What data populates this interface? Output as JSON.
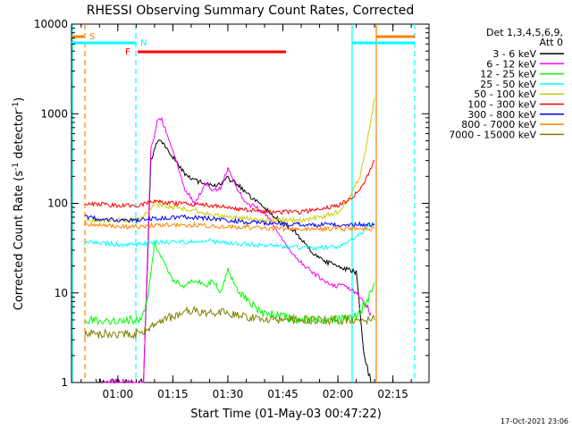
{
  "chart_data": {
    "type": "line",
    "title": "RHESSI Observing Summary Count Rates, Corrected",
    "xlabel": "Start Time (01-May-03 00:47:22)",
    "ylabel": "Corrected Count Rate (s",
    "ylabel_sup": "-1",
    "ylabel_tail": " detector",
    "ylabel_end": ")",
    "yscale": "log",
    "ylim": [
      1,
      10000
    ],
    "xlim": [
      "00:47:22",
      "02:24:50"
    ],
    "x_ticks": [
      "01:00",
      "01:15",
      "01:30",
      "01:45",
      "02:00",
      "02:15"
    ],
    "y_ticks": [
      "1",
      "10",
      "100",
      "1000",
      "10000"
    ],
    "legend_position": "right",
    "legend_header": [
      "Det 1,3,4,5,6,9,",
      "Att 0"
    ],
    "footer": "17-Oct-2021 23:06",
    "markers": [
      {
        "label": "S",
        "color": "#ff7f00"
      },
      {
        "label": "N",
        "color": "#00ffff"
      },
      {
        "label": "F",
        "color": "#ff0000"
      }
    ],
    "series": [
      {
        "name": "3 - 6 keV",
        "color": "#000000",
        "points": [
          [
            "00:54",
            1
          ],
          [
            "01:07",
            1
          ],
          [
            "01:09",
            300
          ],
          [
            "01:11",
            520
          ],
          [
            "01:13",
            430
          ],
          [
            "01:15",
            330
          ],
          [
            "01:18",
            220
          ],
          [
            "01:21",
            180
          ],
          [
            "01:24",
            165
          ],
          [
            "01:27",
            160
          ],
          [
            "01:30",
            190
          ],
          [
            "01:33",
            160
          ],
          [
            "01:36",
            120
          ],
          [
            "01:39",
            95
          ],
          [
            "01:42",
            75
          ],
          [
            "01:45",
            60
          ],
          [
            "01:48",
            50
          ],
          [
            "01:51",
            35
          ],
          [
            "01:54",
            26
          ],
          [
            "01:57",
            22
          ],
          [
            "02:00",
            20
          ],
          [
            "02:03",
            18
          ],
          [
            "02:05",
            17
          ],
          [
            "02:06",
            6
          ],
          [
            "02:07",
            2
          ],
          [
            "02:08",
            1.5
          ],
          [
            "02:09",
            1
          ]
        ]
      },
      {
        "name": "6 - 12 keV",
        "color": "#ff00ff",
        "points": [
          [
            "00:56",
            1
          ],
          [
            "01:07",
            1
          ],
          [
            "01:09",
            400
          ],
          [
            "01:11",
            900
          ],
          [
            "01:12",
            850
          ],
          [
            "01:15",
            400
          ],
          [
            "01:18",
            150
          ],
          [
            "01:21",
            100
          ],
          [
            "01:24",
            170
          ],
          [
            "01:26",
            140
          ],
          [
            "01:28",
            150
          ],
          [
            "01:30",
            240
          ],
          [
            "01:32",
            160
          ],
          [
            "01:35",
            100
          ],
          [
            "01:38",
            90
          ],
          [
            "01:41",
            70
          ],
          [
            "01:44",
            45
          ],
          [
            "01:47",
            30
          ],
          [
            "01:50",
            22
          ],
          [
            "01:53",
            17
          ],
          [
            "01:56",
            14
          ],
          [
            "01:59",
            12
          ],
          [
            "02:02",
            12
          ],
          [
            "02:05",
            10
          ],
          [
            "02:07",
            8
          ],
          [
            "02:09",
            6
          ]
        ]
      },
      {
        "name": "12 - 25 keV",
        "color": "#00ff00",
        "points": [
          [
            "00:51",
            5
          ],
          [
            "01:06",
            5
          ],
          [
            "01:08",
            8
          ],
          [
            "01:10",
            35
          ],
          [
            "01:12",
            25
          ],
          [
            "01:15",
            14
          ],
          [
            "01:18",
            12
          ],
          [
            "01:21",
            14
          ],
          [
            "01:24",
            12
          ],
          [
            "01:26",
            14
          ],
          [
            "01:28",
            10
          ],
          [
            "01:30",
            18
          ],
          [
            "01:33",
            10
          ],
          [
            "01:36",
            8
          ],
          [
            "01:39",
            6
          ],
          [
            "01:42",
            6
          ],
          [
            "01:45",
            5.5
          ],
          [
            "01:50",
            5
          ],
          [
            "01:55",
            5
          ],
          [
            "02:00",
            5
          ],
          [
            "02:05",
            5.5
          ],
          [
            "02:08",
            8
          ],
          [
            "02:10",
            13
          ]
        ]
      },
      {
        "name": "25 - 50 keV",
        "color": "#00ffff",
        "points": [
          [
            "00:51",
            37
          ],
          [
            "01:00",
            35
          ],
          [
            "01:06",
            35
          ],
          [
            "01:10",
            37
          ],
          [
            "01:15",
            37
          ],
          [
            "01:20",
            37
          ],
          [
            "01:25",
            38
          ],
          [
            "01:30",
            36
          ],
          [
            "01:35",
            35
          ],
          [
            "01:40",
            34
          ],
          [
            "01:45",
            33
          ],
          [
            "01:50",
            32
          ],
          [
            "01:55",
            32
          ],
          [
            "02:00",
            33
          ],
          [
            "02:03",
            38
          ],
          [
            "02:06",
            45
          ],
          [
            "02:08",
            55
          ],
          [
            "02:10",
            60
          ]
        ]
      },
      {
        "name": "50 - 100 keV",
        "color": "#cccc00",
        "points": [
          [
            "00:51",
            65
          ],
          [
            "01:00",
            65
          ],
          [
            "01:06",
            65
          ],
          [
            "01:10",
            100
          ],
          [
            "01:15",
            90
          ],
          [
            "01:20",
            85
          ],
          [
            "01:25",
            75
          ],
          [
            "01:30",
            70
          ],
          [
            "01:35",
            68
          ],
          [
            "01:40",
            65
          ],
          [
            "01:45",
            65
          ],
          [
            "01:50",
            65
          ],
          [
            "01:55",
            70
          ],
          [
            "02:00",
            80
          ],
          [
            "02:03",
            110
          ],
          [
            "02:06",
            200
          ],
          [
            "02:08",
            500
          ],
          [
            "02:10",
            1500
          ]
        ]
      },
      {
        "name": "100 - 300 keV",
        "color": "#ff0000",
        "points": [
          [
            "00:51",
            100
          ],
          [
            "01:00",
            95
          ],
          [
            "01:06",
            95
          ],
          [
            "01:10",
            105
          ],
          [
            "01:15",
            100
          ],
          [
            "01:20",
            98
          ],
          [
            "01:25",
            95
          ],
          [
            "01:30",
            90
          ],
          [
            "01:35",
            85
          ],
          [
            "01:40",
            80
          ],
          [
            "01:45",
            80
          ],
          [
            "01:50",
            80
          ],
          [
            "01:55",
            85
          ],
          [
            "02:00",
            95
          ],
          [
            "02:03",
            110
          ],
          [
            "02:06",
            140
          ],
          [
            "02:08",
            200
          ],
          [
            "02:10",
            300
          ]
        ]
      },
      {
        "name": "300 - 800 keV",
        "color": "#0000ff",
        "points": [
          [
            "00:51",
            70
          ],
          [
            "01:00",
            65
          ],
          [
            "01:06",
            65
          ],
          [
            "01:10",
            68
          ],
          [
            "01:15",
            70
          ],
          [
            "01:20",
            70
          ],
          [
            "01:25",
            68
          ],
          [
            "01:30",
            65
          ],
          [
            "01:35",
            62
          ],
          [
            "01:40",
            60
          ],
          [
            "01:45",
            58
          ],
          [
            "01:50",
            58
          ],
          [
            "01:55",
            58
          ],
          [
            "02:00",
            58
          ],
          [
            "02:05",
            58
          ],
          [
            "02:10",
            58
          ]
        ]
      },
      {
        "name": "800 - 7000 keV",
        "color": "#ff7f00",
        "points": [
          [
            "00:51",
            58
          ],
          [
            "01:00",
            55
          ],
          [
            "01:06",
            55
          ],
          [
            "01:10",
            57
          ],
          [
            "01:15",
            57
          ],
          [
            "01:20",
            57
          ],
          [
            "01:25",
            56
          ],
          [
            "01:30",
            55
          ],
          [
            "01:35",
            54
          ],
          [
            "01:40",
            53
          ],
          [
            "01:45",
            52
          ],
          [
            "01:50",
            52
          ],
          [
            "01:55",
            52
          ],
          [
            "02:00",
            52
          ],
          [
            "02:05",
            52
          ],
          [
            "02:10",
            52
          ]
        ]
      },
      {
        "name": "7000 - 15000 keV",
        "color": "#808000",
        "points": [
          [
            "00:51",
            3.5
          ],
          [
            "01:00",
            3.5
          ],
          [
            "01:06",
            3.5
          ],
          [
            "01:10",
            4.5
          ],
          [
            "01:15",
            5.5
          ],
          [
            "01:20",
            6.5
          ],
          [
            "01:25",
            6
          ],
          [
            "01:30",
            6
          ],
          [
            "01:35",
            5.5
          ],
          [
            "01:40",
            5
          ],
          [
            "01:45",
            5
          ],
          [
            "01:50",
            5
          ],
          [
            "01:55",
            5
          ],
          [
            "02:00",
            5
          ],
          [
            "02:05",
            5
          ],
          [
            "02:10",
            5
          ]
        ]
      }
    ]
  }
}
